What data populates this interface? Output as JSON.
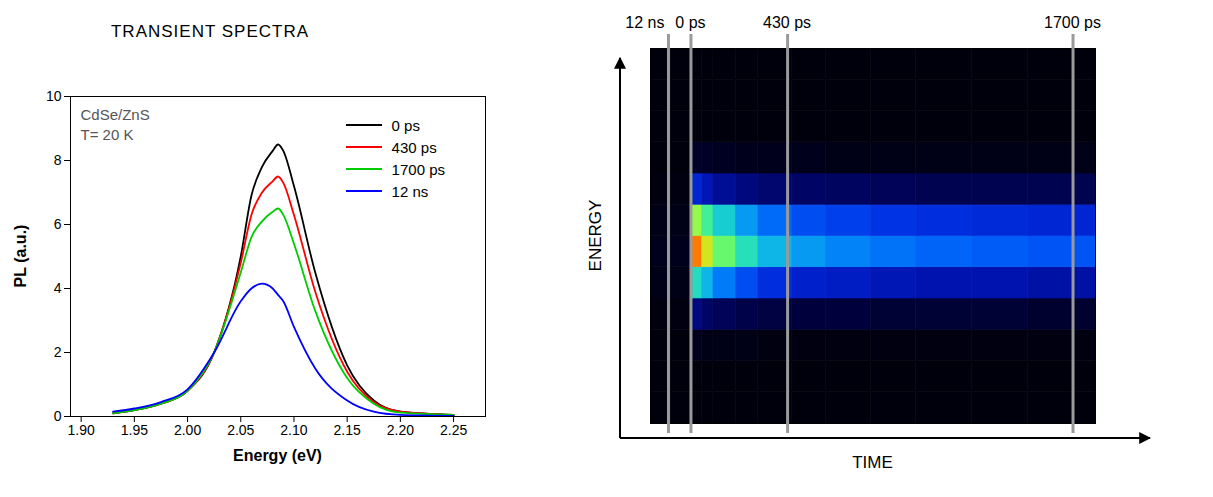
{
  "chart_data": [
    {
      "type": "line",
      "title": "TRANSIENT SPECTRA",
      "annotations": [
        "CdSe/ZnS",
        "T= 20 K"
      ],
      "xlabel": "Energy (eV)",
      "ylabel": "PL (a.u.)",
      "x": [
        1.93,
        1.95,
        1.975,
        2.0,
        2.025,
        2.05,
        2.06,
        2.07,
        2.08,
        2.085,
        2.09,
        2.1,
        2.12,
        2.15,
        2.175,
        2.2,
        2.25
      ],
      "series": [
        {
          "name": "0 ps",
          "color": "#000000",
          "values": [
            0.1,
            0.2,
            0.4,
            0.8,
            2.0,
            5.0,
            6.9,
            7.8,
            8.3,
            8.5,
            8.3,
            7.2,
            4.5,
            1.6,
            0.5,
            0.15,
            0.05
          ]
        },
        {
          "name": "430 ps",
          "color": "#ff0000",
          "values": [
            0.1,
            0.2,
            0.4,
            0.8,
            2.0,
            4.8,
            6.3,
            7.0,
            7.35,
            7.5,
            7.3,
            6.3,
            3.9,
            1.4,
            0.45,
            0.15,
            0.05
          ]
        },
        {
          "name": "1700 ps",
          "color": "#00cc00",
          "values": [
            0.1,
            0.2,
            0.4,
            0.8,
            2.0,
            4.5,
            5.6,
            6.1,
            6.4,
            6.5,
            6.3,
            5.4,
            3.3,
            1.2,
            0.4,
            0.12,
            0.05
          ]
        },
        {
          "name": "12 ns",
          "color": "#0000ff",
          "values": [
            0.15,
            0.25,
            0.45,
            0.85,
            2.0,
            3.6,
            4.0,
            4.15,
            4.0,
            3.8,
            3.6,
            2.8,
            1.5,
            0.5,
            0.15,
            0.05,
            0.02
          ]
        }
      ],
      "xlim": [
        1.89,
        2.28
      ],
      "xticks": [
        {
          "value": 1.9,
          "label": "1.90"
        },
        1.95,
        {
          "value": 2,
          "label": "2.00"
        },
        2.05,
        {
          "value": 2.1,
          "label": "2.10"
        },
        2.15,
        {
          "value": 2.2,
          "label": "2.20"
        },
        2.25
      ],
      "ylim": [
        0,
        10
      ],
      "yticks": [
        0,
        2,
        4,
        6,
        8,
        10
      ],
      "legend": "upper right"
    },
    {
      "type": "heatmap",
      "xlabel": "TIME",
      "ylabel": "ENERGY",
      "x": [
        -180,
        -90,
        0,
        50,
        100,
        200,
        300,
        450,
        600,
        800,
        1000,
        1250,
        1500,
        1800
      ],
      "y": [
        1.91,
        1.94,
        1.97,
        2.0,
        2.03,
        2.06,
        2.09,
        2.12,
        2.15,
        2.18,
        2.21,
        2.24,
        2.27
      ],
      "cells": [
        [
          0.02,
          0.02,
          0.02,
          0.02,
          0.02,
          0.02,
          0.02,
          0.02,
          0.02,
          0.02,
          0.02,
          0.02,
          0.02
        ],
        [
          0.02,
          0.02,
          0.02,
          0.02,
          0.02,
          0.02,
          0.02,
          0.02,
          0.02,
          0.02,
          0.02,
          0.02,
          0.02
        ],
        [
          0.02,
          0.02,
          0.05,
          0.04,
          0.04,
          0.04,
          0.03,
          0.03,
          0.03,
          0.03,
          0.03,
          0.03,
          0.03
        ],
        [
          0.03,
          0.03,
          0.19,
          0.16,
          0.14,
          0.12,
          0.11,
          0.1,
          0.1,
          0.09,
          0.09,
          0.09,
          0.08
        ],
        [
          0.04,
          0.04,
          0.58,
          0.51,
          0.43,
          0.37,
          0.32,
          0.29,
          0.28,
          0.26,
          0.25,
          0.25,
          0.24
        ],
        [
          0.05,
          0.05,
          0.93,
          0.81,
          0.69,
          0.59,
          0.51,
          0.47,
          0.44,
          0.42,
          0.4,
          0.39,
          0.38
        ],
        [
          0.04,
          0.04,
          0.74,
          0.64,
          0.55,
          0.47,
          0.41,
          0.37,
          0.35,
          0.33,
          0.32,
          0.31,
          0.3
        ],
        [
          0.03,
          0.03,
          0.3,
          0.26,
          0.22,
          0.19,
          0.17,
          0.16,
          0.15,
          0.14,
          0.13,
          0.13,
          0.13
        ],
        [
          0.02,
          0.02,
          0.07,
          0.07,
          0.06,
          0.05,
          0.05,
          0.05,
          0.04,
          0.04,
          0.04,
          0.04,
          0.04
        ],
        [
          0.02,
          0.02,
          0.02,
          0.02,
          0.02,
          0.02,
          0.02,
          0.02,
          0.02,
          0.02,
          0.02,
          0.02,
          0.02
        ],
        [
          0.02,
          0.02,
          0.02,
          0.02,
          0.02,
          0.02,
          0.02,
          0.02,
          0.02,
          0.02,
          0.02,
          0.02,
          0.02
        ],
        [
          0.02,
          0.02,
          0.02,
          0.02,
          0.02,
          0.02,
          0.02,
          0.02,
          0.02,
          0.02,
          0.02,
          0.02,
          0.02
        ]
      ],
      "xlim": [
        -180,
        1800
      ],
      "ylim": [
        1.91,
        2.27
      ],
      "zlim": [
        0,
        1
      ],
      "color": "jet",
      "markers": [
        {
          "label": "12 ns",
          "x": -100
        },
        {
          "label": "0 ps",
          "x": 0
        },
        {
          "label": "430 ps",
          "x": 430
        },
        {
          "label": "1700 ps",
          "x": 1700
        }
      ],
      "tick_labels": false
    }
  ]
}
